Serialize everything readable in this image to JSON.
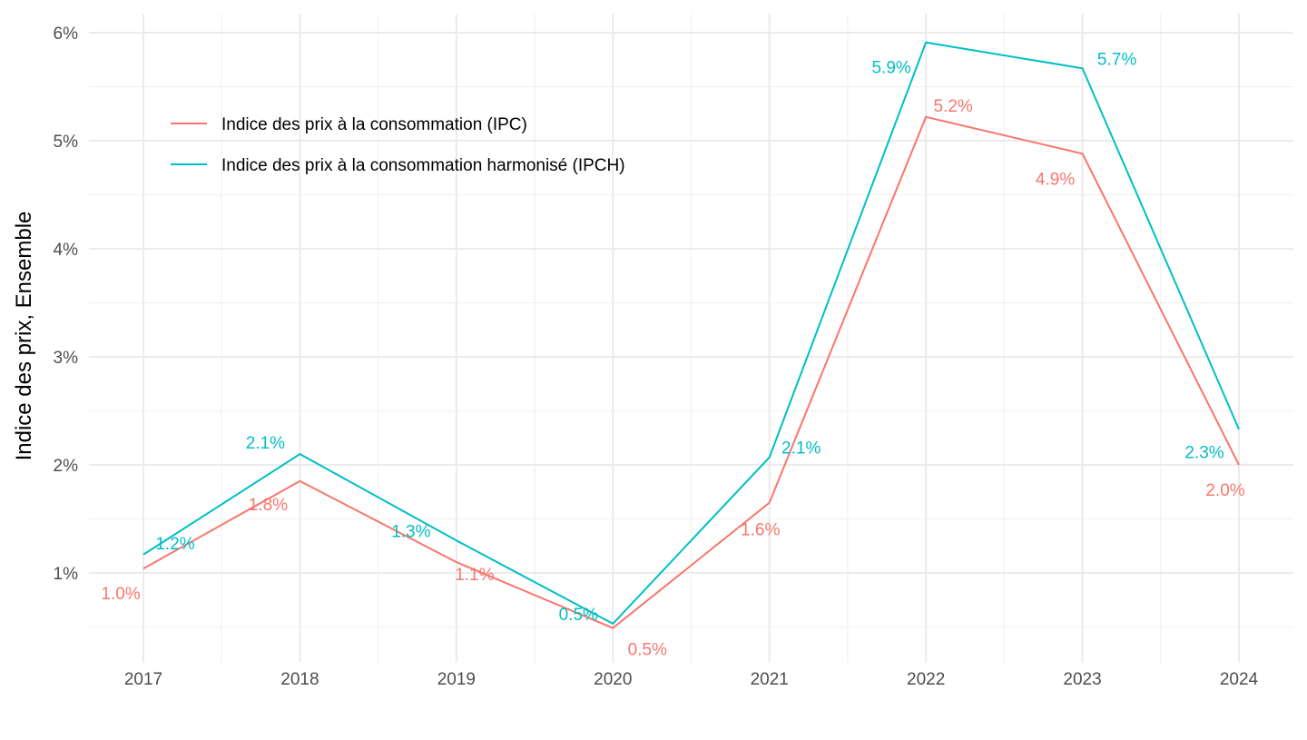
{
  "chart_data": {
    "type": "line",
    "title": "",
    "xlabel": "",
    "ylabel": "Indice des prix, Ensemble",
    "x": [
      2017,
      2018,
      2019,
      2020,
      2021,
      2022,
      2023,
      2024
    ],
    "x_tick_labels": [
      "2017",
      "2018",
      "2019",
      "2020",
      "2021",
      "2022",
      "2023",
      "2024"
    ],
    "y_ticks": [
      1,
      2,
      3,
      4,
      5,
      6
    ],
    "y_tick_labels": [
      "1%",
      "2%",
      "3%",
      "4%",
      "5%",
      "6%"
    ],
    "ylim": [
      0.45,
      6.05
    ],
    "grid": true,
    "legend_position": "top-left",
    "series": [
      {
        "name": "Indice des prix à la consommation (IPC)",
        "color": "#F8766D",
        "values": [
          1.04,
          1.85,
          1.1,
          0.49,
          1.65,
          5.22,
          4.88,
          2.0
        ],
        "labels": [
          "1.0%",
          "1.8%",
          "1.1%",
          "0.5%",
          "1.6%",
          "5.2%",
          "4.9%",
          "2.0%"
        ]
      },
      {
        "name": "Indice des prix à la consommation harmonisé (IPCH)",
        "color": "#00BFC4",
        "values": [
          1.17,
          2.1,
          1.3,
          0.53,
          2.07,
          5.91,
          5.67,
          2.33
        ],
        "labels": [
          "1.2%",
          "2.1%",
          "1.3%",
          "0.5%",
          "2.1%",
          "5.9%",
          "5.7%",
          "2.3%"
        ]
      }
    ]
  }
}
